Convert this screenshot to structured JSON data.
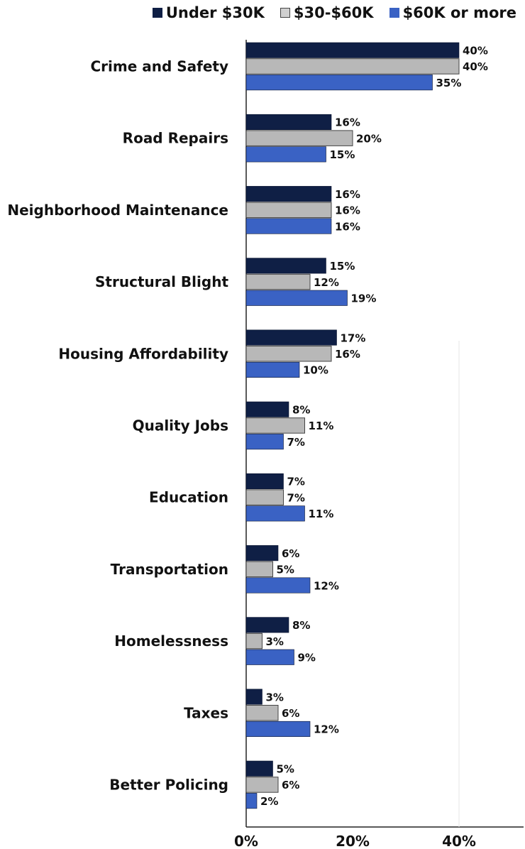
{
  "chart_data": {
    "type": "bar",
    "orientation": "horizontal",
    "title": "",
    "xlabel": "",
    "ylabel": "",
    "xlim": [
      0,
      50
    ],
    "x_ticks": [
      "0%",
      "20%",
      "40%"
    ],
    "x_tick_values": [
      0,
      20,
      40
    ],
    "legend_position": "top-right",
    "grid": false,
    "categories": [
      "Crime and Safety",
      "Road Repairs",
      "Neighborhood Maintenance",
      "Structural Blight",
      "Housing Affordability",
      "Quality Jobs",
      "Education",
      "Transportation",
      "Homelessness",
      "Taxes",
      "Better Policing"
    ],
    "series": [
      {
        "name": "Under $30K",
        "color": "#0f1f45",
        "values": [
          40,
          16,
          16,
          15,
          17,
          8,
          7,
          6,
          8,
          3,
          5
        ]
      },
      {
        "name": "$30-$60K",
        "color": "#b8b8b8",
        "values": [
          40,
          20,
          16,
          12,
          16,
          11,
          7,
          5,
          3,
          6,
          6
        ]
      },
      {
        "name": "$60K or more",
        "color": "#3a62c4",
        "values": [
          35,
          15,
          16,
          19,
          10,
          7,
          11,
          12,
          9,
          12,
          2
        ]
      }
    ]
  }
}
